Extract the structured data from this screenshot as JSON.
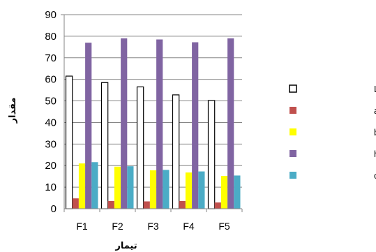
{
  "chart_data": {
    "type": "bar",
    "title": "",
    "xlabel": "تیمار",
    "ylabel": "مقدار",
    "ylim": [
      0,
      90
    ],
    "yticks": [
      0,
      10,
      20,
      30,
      40,
      50,
      60,
      70,
      80,
      90
    ],
    "grid": true,
    "legend_position": "right",
    "categories": [
      "F1",
      "F2",
      "F3",
      "F4",
      "F5"
    ],
    "series": [
      {
        "name": "روشنایی ((L",
        "color": "#ffffff",
        "stroke": "#000000",
        "values": [
          61.5,
          58.5,
          56.5,
          52.8,
          50.2
        ]
      },
      {
        "name": "قرمزی ((a",
        "color": "#c0504d",
        "stroke": "none",
        "values": [
          4.8,
          3.6,
          3.4,
          3.6,
          2.9
        ]
      },
      {
        "name": "زردی((b",
        "color": "#ffff00",
        "stroke": "none",
        "values": [
          21.0,
          19.5,
          17.8,
          16.8,
          15.2
        ]
      },
      {
        "name": "انعکاس رنگ ((h",
        "color": "#8064a2",
        "stroke": "none",
        "values": [
          77.0,
          79.0,
          78.5,
          77.2,
          79.0
        ]
      },
      {
        "name": "اشباعیت رنگ ((c",
        "color": "#4bacc6",
        "stroke": "none",
        "values": [
          21.6,
          19.7,
          18.0,
          17.3,
          15.4
        ]
      }
    ]
  }
}
